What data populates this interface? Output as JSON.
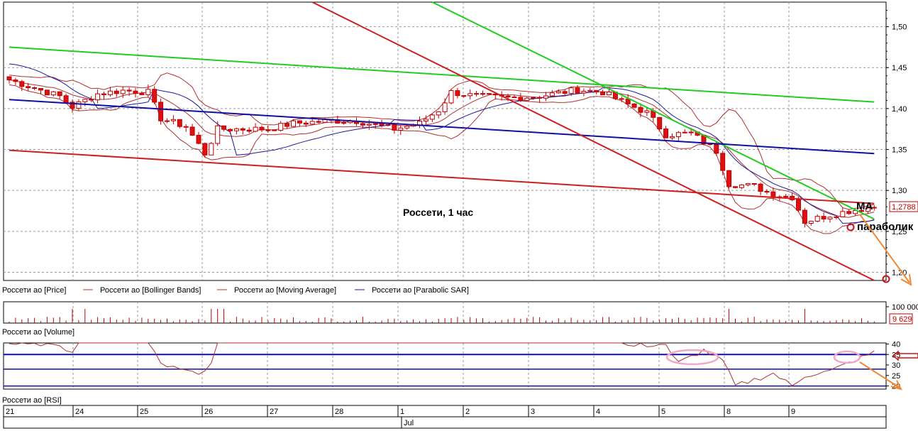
{
  "chart_data": {
    "type": "candlestick",
    "title": "Россети,  1 час",
    "price_axis": {
      "ticks": [
        "1,20",
        "1,25",
        "1,30",
        "1,35",
        "1,40",
        "1,45",
        "1,50"
      ],
      "tick_values": [
        1.2,
        1.25,
        1.3,
        1.35,
        1.4,
        1.45,
        1.5
      ],
      "ylim": [
        1.19,
        1.53
      ],
      "last_price_label": "1,2788",
      "last_price": 1.2788
    },
    "legend": [
      {
        "name": "Россети ао [Price]",
        "color": "#c00000",
        "marker": "none"
      },
      {
        "name": "Россети ао [Bollinger Bands]",
        "color": "#b03030",
        "marker": "line"
      },
      {
        "name": "Россети ао [Moving Average]",
        "color": "#b03030",
        "marker": "line"
      },
      {
        "name": "Россети ао [Parabolic SAR]",
        "color": "#1a1aa0",
        "marker": "line"
      }
    ],
    "annotations": {
      "ma_label": "МА",
      "sar_label": "параболик"
    },
    "x_axis": {
      "day_labels": [
        "21",
        "24",
        "25",
        "26",
        "27",
        "28",
        "1",
        "2",
        "3",
        "4",
        "5",
        "8",
        "9"
      ],
      "month_label": "Jul",
      "bar_range": [
        0,
        137
      ]
    },
    "trend_lines": [
      {
        "color": "#22cc22",
        "from": [
          0,
          1.475
        ],
        "to": [
          137,
          1.408
        ]
      },
      {
        "color": "#22cc22",
        "from": [
          67,
          1.53
        ],
        "to": [
          137,
          1.265
        ]
      },
      {
        "color": "#1010a0",
        "from": [
          0,
          1.411
        ],
        "to": [
          137,
          1.345
        ]
      },
      {
        "color": "#cc2020",
        "from": [
          0,
          1.349
        ],
        "to": [
          137,
          1.284
        ]
      },
      {
        "color": "#cc2020",
        "from": [
          48,
          1.53
        ],
        "to": [
          137,
          1.19
        ]
      }
    ],
    "volume_panel": {
      "label": "Россети ао [Volume]",
      "ticks": [
        "100 000"
      ],
      "last_label": "9 629"
    },
    "rsi_panel": {
      "label": "Россети ао [RSI]",
      "ticks": [
        "40",
        "35",
        "30",
        "25",
        "20"
      ],
      "tick_values": [
        40,
        35,
        30,
        25,
        20
      ],
      "ylim": [
        18.5,
        40.5
      ],
      "levels": [
        20,
        28,
        35
      ]
    },
    "colors": {
      "bull": "#ffffff",
      "bear": "#dd1111",
      "candle_edge": "#c00000",
      "band": "#b03030",
      "sar": "#1a1aa0",
      "arrow": "#ee8833",
      "circle": "#e8a0c0"
    }
  }
}
